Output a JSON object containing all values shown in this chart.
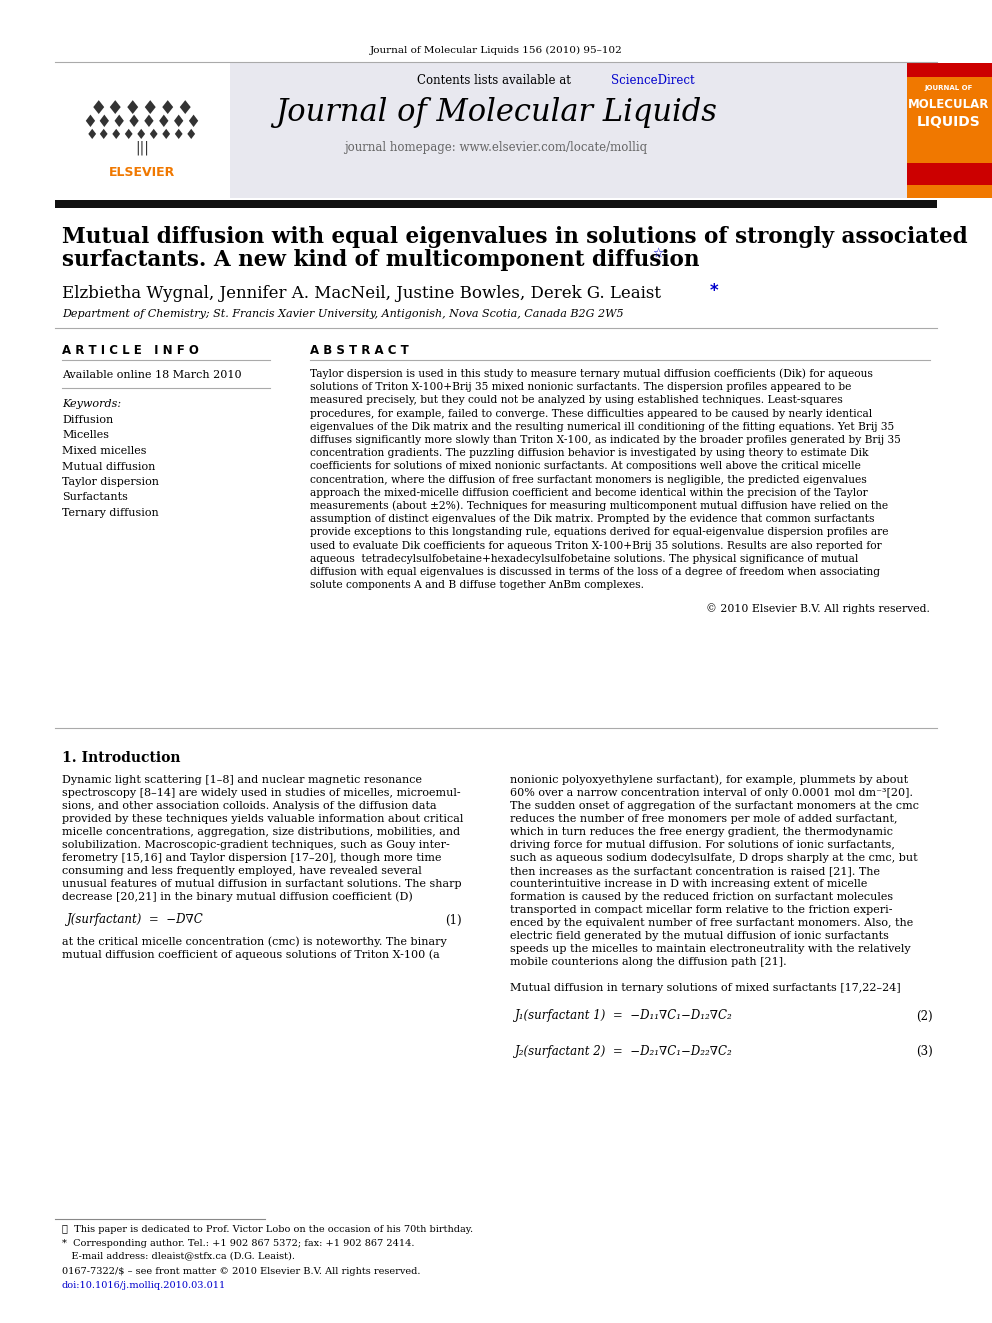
{
  "journal_ref": "Journal of Molecular Liquids 156 (2010) 95–102",
  "contents_line": "Contents lists available at",
  "sciencedirect_text": "ScienceDirect",
  "journal_title": "Journal of Molecular Liquids",
  "journal_homepage": "journal homepage: www.elsevier.com/locate/molliq",
  "paper_title_line1": "Mutual diffusion with equal eigenvalues in solutions of strongly associated",
  "paper_title_line2": "surfactants. A new kind of multicomponent diffusion",
  "authors": "Elzbietha Wygnal, Jennifer A. MacNeil, Justine Bowles, Derek G. Leaist",
  "affiliation": "Department of Chemistry; St. Francis Xavier University, Antigonish, Nova Scotia, Canada B2G 2W5",
  "article_info_header": "A R T I C L E   I N F O",
  "abstract_header": "A B S T R A C T",
  "available_online": "Available online 18 March 2010",
  "keywords_header": "Keywords:",
  "keywords": [
    "Diffusion",
    "Micelles",
    "Mixed micelles",
    "Mutual diffusion",
    "Taylor dispersion",
    "Surfactants",
    "Ternary diffusion"
  ],
  "copyright": "© 2010 Elsevier B.V. All rights reserved.",
  "intro_header": "1. Introduction",
  "footnote1": "☆  This paper is dedicated to Prof. Victor Lobo on the occasion of his 70th birthday.",
  "footnote2": "*  Corresponding author. Tel.: +1 902 867 5372; fax: +1 902 867 2414.",
  "footnote3": "   E-mail address: dleaist@stfx.ca (D.G. Leaist).",
  "footnote4": "0167-7322/$ – see front matter © 2010 Elsevier B.V. All rights reserved.",
  "footnote5": "doi:10.1016/j.molliq.2010.03.011",
  "elsevier_orange": "#F07800",
  "link_blue": "#0000CC",
  "header_bg": "#E8E8EF",
  "thick_bar_color": "#111111",
  "thin_line_color": "#888888"
}
